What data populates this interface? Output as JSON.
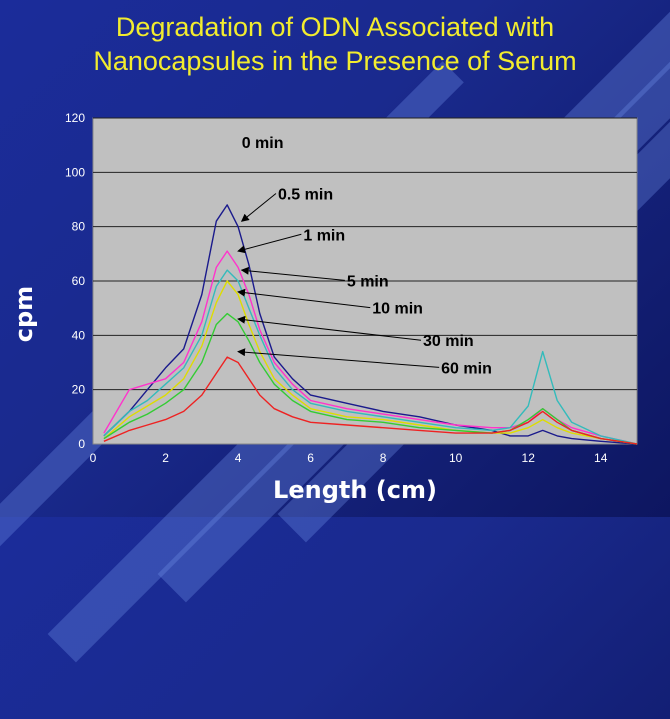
{
  "slide": {
    "title_line1": "Degradation of ODN Associated with",
    "title_line2": "Nanocapsules in the Presence of Serum"
  },
  "chart_data": {
    "type": "line",
    "title": "Degradation of ODN Associated with Nanocapsules in the Presence of Serum",
    "xlabel": "Length (cm)",
    "ylabel": "cpm",
    "xlim": [
      0,
      15
    ],
    "ylim": [
      0,
      120
    ],
    "x_ticks": [
      "0",
      "2",
      "4",
      "6",
      "8",
      "10",
      "12",
      "14"
    ],
    "y_ticks": [
      "0",
      "20",
      "40",
      "60",
      "80",
      "100",
      "120"
    ],
    "grid": "horizontal",
    "plot_background": "#c0c0c0",
    "series": [
      {
        "name": "0.5 min",
        "color": "#1a1a8c",
        "x": [
          0.3,
          1.0,
          1.5,
          2.0,
          2.5,
          3.0,
          3.4,
          3.7,
          4.0,
          4.3,
          4.6,
          5.0,
          5.5,
          6.0,
          7.0,
          8.0,
          9.0,
          10.0,
          11.0,
          11.5,
          12.0,
          12.4,
          12.8,
          13.2,
          14.0,
          15.0
        ],
        "y": [
          3,
          12,
          20,
          28,
          35,
          55,
          82,
          88,
          80,
          66,
          48,
          32,
          24,
          18,
          15,
          12,
          10,
          7,
          5,
          3,
          3,
          5,
          3,
          2,
          1,
          0
        ]
      },
      {
        "name": "1 min",
        "color": "#ff33cc",
        "x": [
          0.3,
          1.0,
          1.5,
          2.0,
          2.5,
          3.0,
          3.4,
          3.7,
          4.0,
          4.3,
          4.6,
          5.0,
          5.5,
          6.0,
          7.0,
          8.0,
          9.0,
          10.0,
          11.0,
          11.5,
          12.0,
          12.4,
          12.8,
          13.2,
          14.0,
          15.0
        ],
        "y": [
          4,
          20,
          22,
          24,
          30,
          45,
          65,
          71,
          65,
          55,
          42,
          30,
          22,
          16,
          13,
          11,
          9,
          7,
          6,
          6,
          8,
          13,
          9,
          6,
          3,
          0
        ]
      },
      {
        "name": "5 min",
        "color": "#33bbbb",
        "x": [
          0.3,
          1.0,
          1.5,
          2.0,
          2.5,
          3.0,
          3.4,
          3.7,
          4.0,
          4.3,
          4.6,
          5.0,
          5.5,
          6.0,
          7.0,
          8.0,
          9.0,
          10.0,
          11.0,
          11.5,
          12.0,
          12.4,
          12.8,
          13.2,
          14.0,
          15.0
        ],
        "y": [
          3,
          12,
          16,
          22,
          28,
          40,
          58,
          64,
          60,
          50,
          40,
          28,
          20,
          15,
          12,
          10,
          8,
          6,
          5,
          6,
          14,
          34,
          16,
          8,
          3,
          0
        ]
      },
      {
        "name": "10 min",
        "color": "#dddd00",
        "x": [
          0.3,
          1.0,
          1.5,
          2.0,
          2.5,
          3.0,
          3.4,
          3.7,
          4.0,
          4.3,
          4.6,
          5.0,
          5.5,
          6.0,
          7.0,
          8.0,
          9.0,
          10.0,
          11.0,
          11.5,
          12.0,
          12.4,
          12.8,
          13.2,
          14.0,
          15.0
        ],
        "y": [
          2,
          10,
          14,
          18,
          24,
          36,
          52,
          60,
          55,
          44,
          34,
          24,
          18,
          13,
          10,
          9,
          7,
          5,
          4,
          4,
          6,
          9,
          6,
          4,
          2,
          0
        ]
      },
      {
        "name": "30 min",
        "color": "#33cc33",
        "x": [
          0.3,
          1.0,
          1.5,
          2.0,
          2.5,
          3.0,
          3.4,
          3.7,
          4.0,
          4.3,
          4.6,
          5.0,
          5.5,
          6.0,
          7.0,
          8.0,
          9.0,
          10.0,
          11.0,
          11.5,
          12.0,
          12.4,
          12.8,
          13.2,
          14.0,
          15.0
        ],
        "y": [
          2,
          8,
          11,
          15,
          20,
          30,
          44,
          48,
          45,
          38,
          30,
          22,
          16,
          12,
          9,
          8,
          6,
          5,
          4,
          5,
          9,
          13,
          9,
          5,
          2,
          0
        ]
      },
      {
        "name": "60 min",
        "color": "#ee2222",
        "x": [
          0.3,
          1.0,
          1.5,
          2.0,
          2.5,
          3.0,
          3.4,
          3.7,
          4.0,
          4.3,
          4.6,
          5.0,
          5.5,
          6.0,
          7.0,
          8.0,
          9.0,
          10.0,
          11.0,
          11.5,
          12.0,
          12.4,
          12.8,
          13.2,
          14.0,
          15.0
        ],
        "y": [
          1,
          5,
          7,
          9,
          12,
          18,
          26,
          32,
          30,
          24,
          18,
          13,
          10,
          8,
          7,
          6,
          5,
          4,
          4,
          5,
          8,
          12,
          8,
          5,
          2,
          0
        ]
      }
    ],
    "annotations": [
      {
        "text": "0 min",
        "x": 4.1,
        "y": 109
      },
      {
        "text": "0.5 min",
        "x": 5.1,
        "y": 90,
        "arrow_to": [
          4.1,
          82
        ]
      },
      {
        "text": "1 min",
        "x": 5.8,
        "y": 75,
        "arrow_to": [
          4.0,
          71
        ]
      },
      {
        "text": "5 min",
        "x": 7.0,
        "y": 58,
        "arrow_to": [
          4.1,
          64
        ]
      },
      {
        "text": "10 min",
        "x": 7.7,
        "y": 48,
        "arrow_to": [
          4.0,
          56
        ]
      },
      {
        "text": "30 min",
        "x": 9.1,
        "y": 36,
        "arrow_to": [
          4.0,
          46
        ]
      },
      {
        "text": "60 min",
        "x": 9.6,
        "y": 26,
        "arrow_to": [
          4.0,
          34
        ]
      }
    ]
  }
}
